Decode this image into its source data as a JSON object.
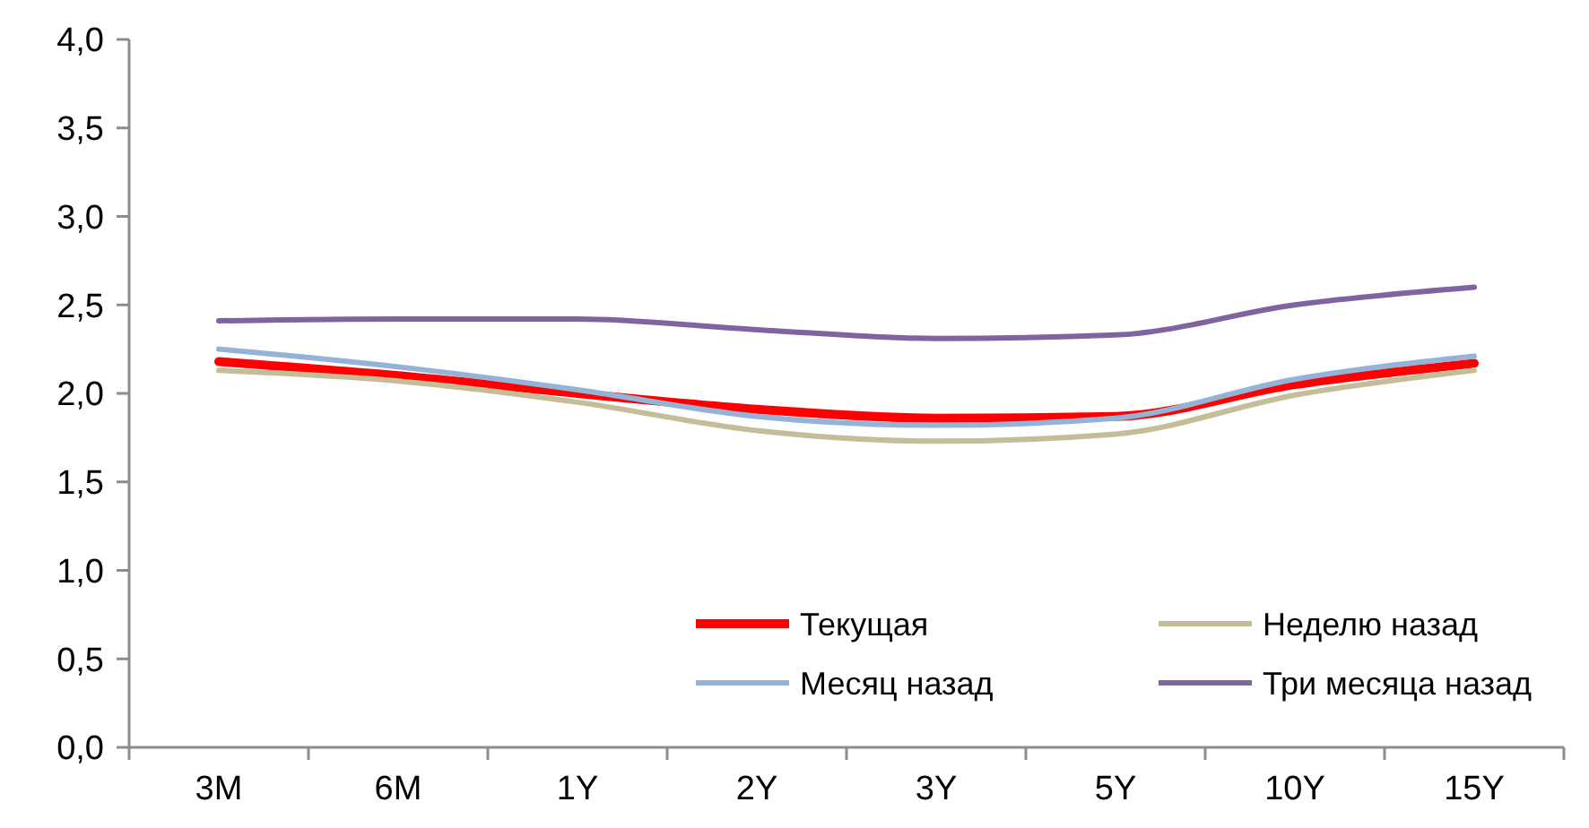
{
  "chart_data": {
    "type": "line",
    "categories": [
      "3M",
      "6M",
      "1Y",
      "2Y",
      "3Y",
      "5Y",
      "10Y",
      "15Y"
    ],
    "ylim": [
      0,
      4
    ],
    "yticks": [
      {
        "value": 0,
        "label": "0,0"
      },
      {
        "value": 0.5,
        "label": "0,5"
      },
      {
        "value": 1,
        "label": "1,0"
      },
      {
        "value": 1.5,
        "label": "1,5"
      },
      {
        "value": 2,
        "label": "2,0"
      },
      {
        "value": 2.5,
        "label": "2,5"
      },
      {
        "value": 3,
        "label": "3,0"
      },
      {
        "value": 3.5,
        "label": "3,5"
      },
      {
        "value": 4,
        "label": "4,0"
      }
    ],
    "grid": false,
    "legend": "bottom right",
    "marker": "none",
    "line_style": "solid",
    "series": [
      {
        "name": "Текущая",
        "color": "#ff0000",
        "values": [
          2.18,
          2.1,
          2.0,
          1.91,
          1.86,
          1.87,
          2.05,
          2.17
        ]
      },
      {
        "name": "Неделю назад",
        "color": "#c4bd97",
        "values": [
          2.13,
          2.07,
          1.95,
          1.79,
          1.73,
          1.77,
          1.99,
          2.13
        ]
      },
      {
        "name": "Месяц назад",
        "color": "#95b3d7",
        "values": [
          2.25,
          2.15,
          2.02,
          1.87,
          1.82,
          1.86,
          2.08,
          2.21
        ]
      },
      {
        "name": "Три месяца назад",
        "color": "#8064a2",
        "values": [
          2.41,
          2.42,
          2.42,
          2.36,
          2.31,
          2.33,
          2.5,
          2.6
        ]
      }
    ]
  }
}
